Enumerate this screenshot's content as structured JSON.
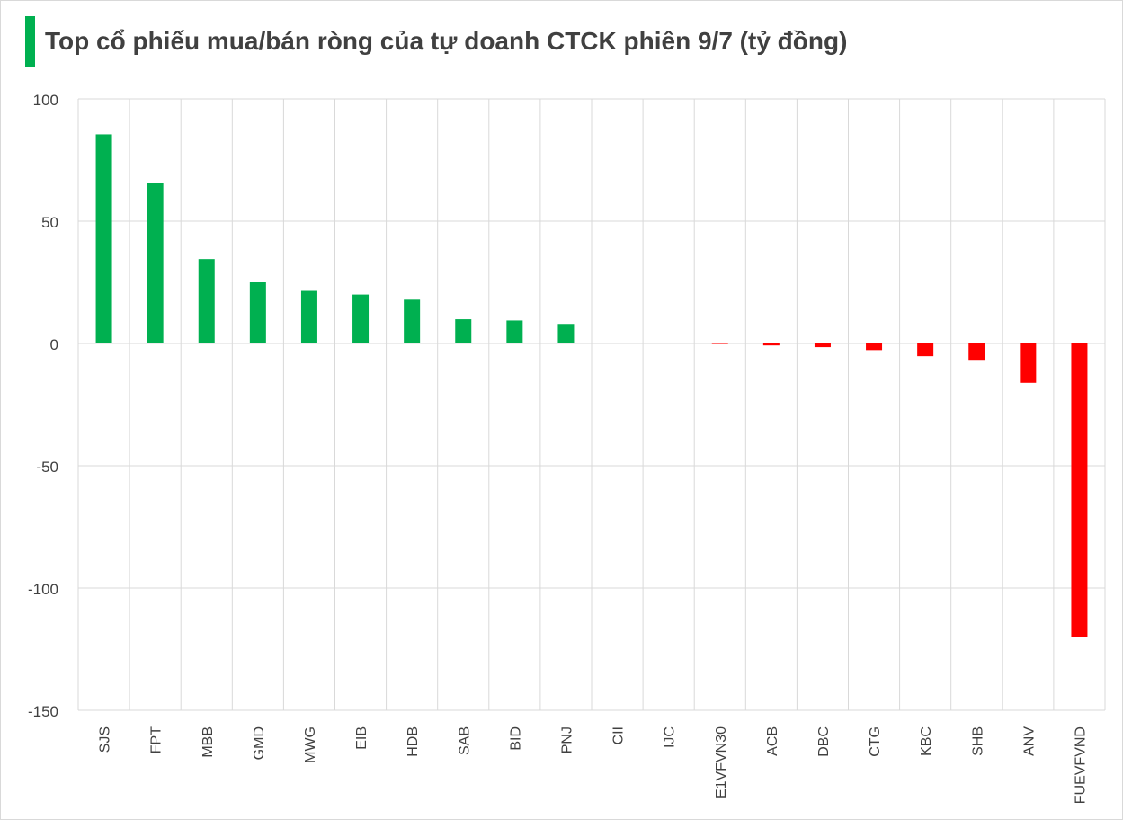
{
  "title": "Top cổ phiếu mua/bán ròng của tự doanh CTCK phiên 9/7 (tỷ đồng)",
  "colors": {
    "positive": "#00b050",
    "negative": "#ff0000",
    "accent_bar": "#00b050",
    "grid": "#d9d9d9",
    "text": "#404040"
  },
  "chart_data": {
    "type": "bar",
    "title": "Top cổ phiếu mua/bán ròng của tự doanh CTCK phiên 9/7 (tỷ đồng)",
    "categories": [
      "SJS",
      "FPT",
      "MBB",
      "GMD",
      "MWG",
      "EIB",
      "HDB",
      "SAB",
      "BID",
      "PNJ",
      "CII",
      "IJC",
      "E1VFVN30",
      "ACB",
      "DBC",
      "CTG",
      "KBC",
      "SHB",
      "ANV",
      "FUEVFVND"
    ],
    "values": [
      85.5,
      65.7,
      34.5,
      25.0,
      21.5,
      20.0,
      17.9,
      9.9,
      9.4,
      8.0,
      0.3,
      0.2,
      -0.2,
      -0.8,
      -1.5,
      -2.7,
      -5.2,
      -6.7,
      -16.1,
      -120.0
    ],
    "ylim": [
      -150,
      100
    ],
    "yticks": [
      100,
      50,
      0,
      -50,
      -100,
      -150
    ],
    "grid": true,
    "legend": "none"
  }
}
